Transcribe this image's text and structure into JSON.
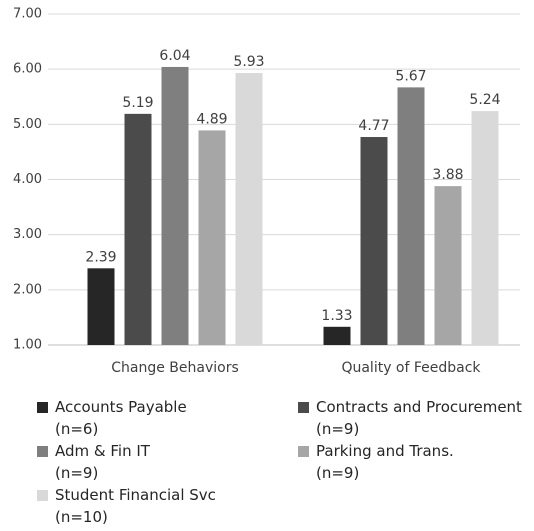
{
  "chart_data": {
    "type": "bar",
    "categories": [
      "Change Behaviors",
      "Quality of Feedback"
    ],
    "series": [
      {
        "name": "Accounts Payable\n(n=6)",
        "color": "#262626",
        "values": [
          2.39,
          1.33
        ]
      },
      {
        "name": "Contracts and Procurement\n(n=9)",
        "color": "#4b4b4b",
        "values": [
          5.19,
          4.77
        ]
      },
      {
        "name": "Adm & Fin IT\n(n=9)",
        "color": "#7f7f7f",
        "values": [
          6.04,
          5.67
        ]
      },
      {
        "name": "Parking and Trans.\n(n=9)",
        "color": "#a6a6a6",
        "values": [
          4.89,
          3.88
        ]
      },
      {
        "name": "Student Financial Svc\n(n=10)",
        "color": "#d9d9d9",
        "values": [
          5.93,
          5.24
        ]
      }
    ],
    "ylim": [
      1,
      7
    ],
    "yticks": [
      {
        "value": 1,
        "label": "1.00"
      },
      {
        "value": 2,
        "label": "2.00"
      },
      {
        "value": 3,
        "label": "3.00"
      },
      {
        "value": 4,
        "label": "4.00"
      },
      {
        "value": 5,
        "label": "5.00"
      },
      {
        "value": 6,
        "label": "6.00"
      },
      {
        "value": 7,
        "label": "7.00"
      }
    ],
    "grid": true,
    "legend": "bottom"
  }
}
